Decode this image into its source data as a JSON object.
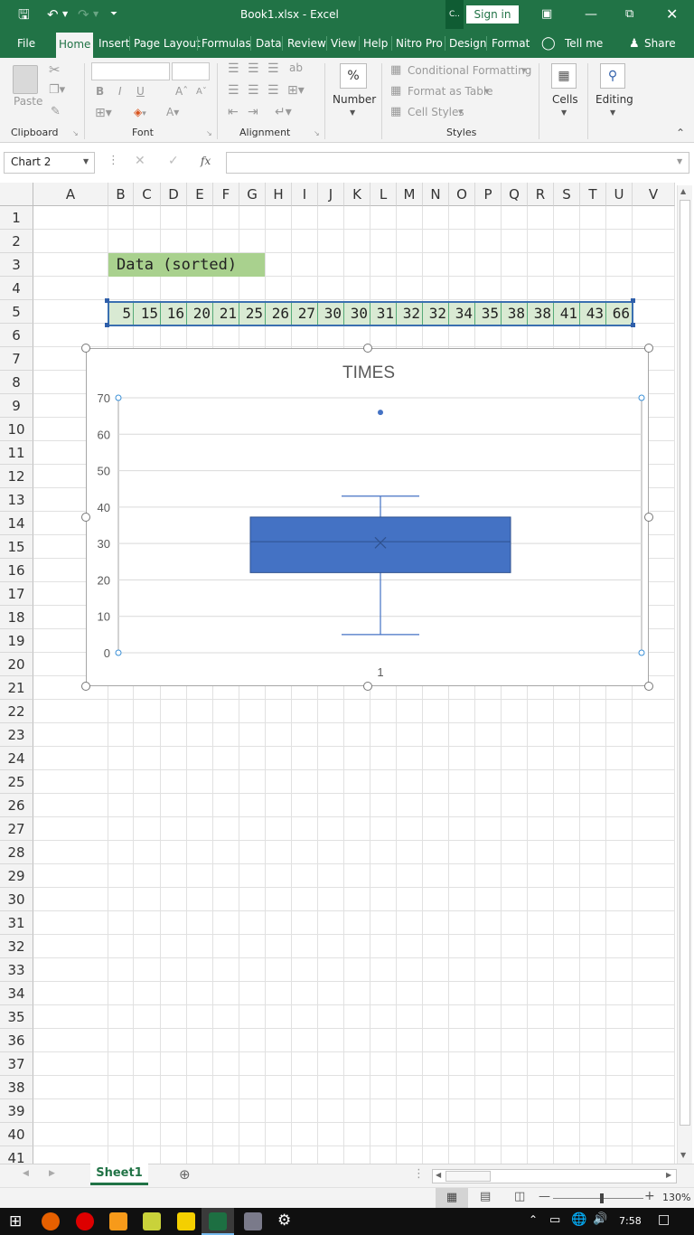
{
  "window": {
    "title": "Book1.xlsx  -  Excel",
    "sign_in": "Sign in",
    "truncated_tab": "C.."
  },
  "tabs": [
    {
      "label": "File",
      "active": false
    },
    {
      "label": "Home",
      "active": true
    },
    {
      "label": "Insert",
      "active": false
    },
    {
      "label": "Page Layout",
      "active": false
    },
    {
      "label": "Formulas",
      "active": false
    },
    {
      "label": "Data",
      "active": false
    },
    {
      "label": "Review",
      "active": false
    },
    {
      "label": "View",
      "active": false
    },
    {
      "label": "Help",
      "active": false
    },
    {
      "label": "Nitro Pro",
      "active": false
    },
    {
      "label": "Design",
      "active": false
    },
    {
      "label": "Format",
      "active": false
    }
  ],
  "tell_me": "Tell me",
  "share": "Share",
  "ribbon": {
    "clipboard": {
      "label": "Clipboard",
      "paste": "Paste"
    },
    "font": {
      "label": "Font",
      "bold": "B",
      "italic": "I",
      "underline": "U"
    },
    "alignment": {
      "label": "Alignment"
    },
    "number": {
      "label": "Number",
      "icon_text": "%"
    },
    "styles": {
      "label": "Styles",
      "conditional": "Conditional Formatting",
      "format_table": "Format as Table",
      "cell_styles": "Cell Styles"
    },
    "cells": {
      "label": "Cells"
    },
    "editing": {
      "label": "Editing"
    }
  },
  "formula_bar": {
    "name_box": "Chart 2",
    "fx": "fx",
    "value": ""
  },
  "columns": [
    "A",
    "B",
    "C",
    "D",
    "E",
    "F",
    "G",
    "H",
    "I",
    "J",
    "K",
    "L",
    "M",
    "N",
    "O",
    "P",
    "Q",
    "R",
    "S",
    "T",
    "U",
    "V"
  ],
  "rows": [
    "1",
    "2",
    "3",
    "4",
    "5",
    "6",
    "7",
    "8",
    "9",
    "10",
    "11",
    "12",
    "13",
    "14",
    "15",
    "16",
    "17",
    "18",
    "19",
    "20",
    "21",
    "22",
    "23",
    "24",
    "25",
    "26",
    "27",
    "28",
    "29",
    "30",
    "31",
    "32",
    "33",
    "34",
    "35",
    "36",
    "37",
    "38",
    "39",
    "40",
    "41"
  ],
  "sheet": {
    "header_cell": "Data (sorted)",
    "values": [
      "5",
      "15",
      "16",
      "20",
      "21",
      "25",
      "26",
      "27",
      "30",
      "30",
      "31",
      "32",
      "32",
      "34",
      "35",
      "38",
      "38",
      "41",
      "43",
      "66"
    ]
  },
  "chart_data": {
    "type": "box",
    "title": "TIMES",
    "categories": [
      "1"
    ],
    "ylim": [
      0,
      70
    ],
    "yticks": [
      "0",
      "10",
      "20",
      "30",
      "40",
      "50",
      "60",
      "70"
    ],
    "whisker_low": 5,
    "q1": 22,
    "median": 30.5,
    "q3": 37.25,
    "whisker_high": 43,
    "mean": 30.2,
    "outliers": [
      66
    ],
    "color": "#4472c4",
    "grid": true
  },
  "sheet_tabs": [
    {
      "label": "Sheet1",
      "active": true
    }
  ],
  "status": {
    "zoom": "130%"
  },
  "taskbar": {
    "time": "7:58"
  }
}
